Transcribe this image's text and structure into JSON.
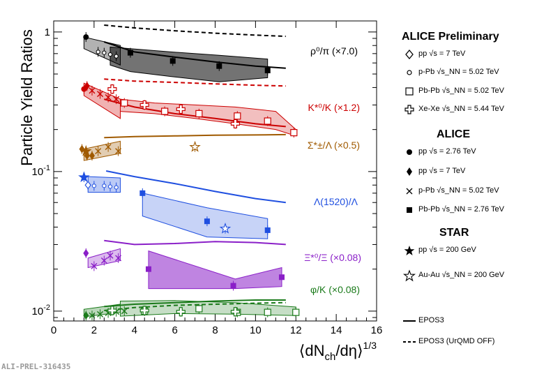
{
  "chart_data": {
    "type": "scatter",
    "ylabel": "Particle Yield Ratios",
    "xlabel": "⟨dN_ch/dη⟩^1/3",
    "y_scale": "log",
    "xlim": [
      0,
      16
    ],
    "ylim": [
      0.0085,
      1.2
    ],
    "x_ticks": [
      "0",
      "2",
      "4",
      "6",
      "8",
      "10",
      "12",
      "14",
      "16"
    ],
    "y_ticks": [
      {
        "value": 1,
        "label": "1"
      },
      {
        "value": 0.1,
        "label": "10^-1"
      },
      {
        "value": 0.01,
        "label": "10^-2"
      }
    ],
    "ratio_labels": [
      {
        "name": "rho-pi",
        "text": "ρ⁰/π (×7.0)",
        "color": "#000000"
      },
      {
        "name": "kstar-k",
        "text": "K*⁰/K (×1.2)",
        "color": "#cc0000"
      },
      {
        "name": "sigma-lambda",
        "text": "Σ*±/Λ (×0.5)",
        "color": "#a05a00"
      },
      {
        "name": "lambda1520",
        "text": "Λ(1520)/Λ",
        "color": "#1f4fe0"
      },
      {
        "name": "xi-xi",
        "text": "Ξ*⁰/Ξ (×0.08)",
        "color": "#8a1fc8"
      },
      {
        "name": "phi-k",
        "text": "φ/K (×0.08)",
        "color": "#1a7a1a"
      }
    ],
    "series": [
      {
        "name": "rho0/pi",
        "color": "#000000",
        "epos": {
          "x": [
            2.5,
            4,
            6,
            8,
            10,
            11.5
          ],
          "y": [
            0.85,
            0.72,
            0.66,
            0.61,
            0.57,
            0.55
          ]
        },
        "epos_off": {
          "x": [
            2.5,
            4,
            6,
            8,
            10,
            11.5
          ],
          "y": [
            1.12,
            1.07,
            1.02,
            0.98,
            0.95,
            0.93
          ]
        },
        "band_collision": {
          "x": [
            1.5,
            3.3
          ],
          "lo": [
            0.76,
            0.58
          ],
          "hi": [
            0.92,
            0.8
          ]
        },
        "band_pbpb": {
          "x": [
            2.8,
            3.8,
            5.8,
            8.2,
            10.6
          ],
          "lo": [
            0.58,
            0.52,
            0.48,
            0.44,
            0.47
          ],
          "hi": [
            0.78,
            0.76,
            0.72,
            0.68,
            0.64
          ]
        },
        "points": [
          {
            "set": "pp-2.76",
            "marker": "filled-circle",
            "x": [
              1.6
            ],
            "y": [
              0.92
            ]
          },
          {
            "set": "pPb-5.02-prelim",
            "marker": "open-circle",
            "x": [
              2.2,
              2.5,
              2.8,
              3.1
            ],
            "y": [
              0.72,
              0.71,
              0.69,
              0.67
            ]
          },
          {
            "set": "PbPb-2.76",
            "marker": "filled-square",
            "x": [
              3.8,
              5.9,
              8.2,
              10.6
            ],
            "y": [
              0.71,
              0.62,
              0.57,
              0.53
            ]
          }
        ]
      },
      {
        "name": "K*0/K",
        "color": "#cc0000",
        "epos": {
          "x": [
            2.5,
            4,
            6,
            8,
            10,
            11.5
          ],
          "y": [
            0.33,
            0.29,
            0.26,
            0.24,
            0.22,
            0.21
          ]
        },
        "epos_off": {
          "x": [
            2.5,
            4,
            6,
            8,
            10,
            11.5
          ],
          "y": [
            0.46,
            0.445,
            0.435,
            0.425,
            0.415,
            0.41
          ]
        },
        "band_collision": {
          "x": [
            1.5,
            3.3
          ],
          "lo": [
            0.35,
            0.24
          ],
          "hi": [
            0.43,
            0.33
          ]
        },
        "band_pbpb": {
          "x": [
            3.3,
            5,
            7,
            9,
            11,
            12
          ],
          "lo": [
            0.27,
            0.26,
            0.24,
            0.22,
            0.2,
            0.18
          ],
          "hi": [
            0.33,
            0.31,
            0.3,
            0.29,
            0.27,
            0.2
          ]
        },
        "points": [
          {
            "set": "pp-2.76",
            "marker": "filled-circle",
            "x": [
              1.5
            ],
            "y": [
              0.39
            ]
          },
          {
            "set": "pp-7",
            "marker": "filled-diamond",
            "x": [
              1.65
            ],
            "y": [
              0.41
            ]
          },
          {
            "set": "pPb-5.02",
            "marker": "cross",
            "x": [
              1.9,
              2.3,
              2.7,
              3.1
            ],
            "y": [
              0.38,
              0.36,
              0.34,
              0.33
            ]
          },
          {
            "set": "PbPb-5.02-prelim",
            "marker": "open-square",
            "x": [
              3.5,
              5.5,
              7.2,
              9.1,
              10.6,
              11.9
            ],
            "y": [
              0.31,
              0.27,
              0.26,
              0.25,
              0.23,
              0.19
            ]
          },
          {
            "set": "XeXe-5.44-prelim",
            "marker": "open-cross",
            "x": [
              2.9,
              4.5,
              6.3,
              9.0
            ],
            "y": [
              0.39,
              0.3,
              0.28,
              0.22
            ]
          }
        ]
      },
      {
        "name": "Sigma*/Lambda",
        "color": "#a05a00",
        "epos": {
          "x": [
            2.5,
            4,
            6,
            8,
            10,
            11.5
          ],
          "y": [
            0.175,
            0.178,
            0.18,
            0.182,
            0.183,
            0.184
          ]
        },
        "band_collision": {
          "x": [
            1.5,
            3.3
          ],
          "lo": [
            0.12,
            0.135
          ],
          "hi": [
            0.145,
            0.165
          ]
        },
        "points": [
          {
            "set": "pp-7",
            "marker": "filled-diamond",
            "x": [
              1.4,
              1.65,
              1.9
            ],
            "y": [
              0.145,
              0.13,
              0.13
            ]
          },
          {
            "set": "pPb-5.02",
            "marker": "cross",
            "x": [
              2.2,
              2.7,
              3.2
            ],
            "y": [
              0.14,
              0.15,
              0.14
            ]
          },
          {
            "set": "STAR-pp-200",
            "marker": "filled-star",
            "x": [
              1.6
            ],
            "y": [
              0.14
            ]
          },
          {
            "set": "STAR-AuAu-200",
            "marker": "open-star",
            "x": [
              7.0
            ],
            "y": [
              0.15
            ]
          }
        ]
      },
      {
        "name": "Lambda(1520)/Lambda",
        "color": "#1f4fe0",
        "epos": {
          "x": [
            2.6,
            4,
            6,
            8,
            10,
            11.5
          ],
          "y": [
            0.101,
            0.092,
            0.082,
            0.072,
            0.064,
            0.06
          ]
        },
        "band_collision": {
          "x": [
            1.7,
            3.3
          ],
          "lo": [
            0.071,
            0.071
          ],
          "hi": [
            0.092,
            0.09
          ]
        },
        "band_pbpb": {
          "x": [
            4.4,
            7.6,
            10.6
          ],
          "lo": [
            0.048,
            0.034,
            0.033
          ],
          "hi": [
            0.07,
            0.055,
            0.046
          ]
        },
        "points": [
          {
            "set": "STAR-pp-200",
            "marker": "filled-star",
            "x": [
              1.5
            ],
            "y": [
              0.091
            ]
          },
          {
            "set": "pp-7-prelim",
            "marker": "open-diamond",
            "x": [
              1.7
            ],
            "y": [
              0.08
            ]
          },
          {
            "set": "pPb-5.02-prelim",
            "marker": "open-circle",
            "x": [
              2.0,
              2.5,
              2.8,
              3.1
            ],
            "y": [
              0.079,
              0.079,
              0.078,
              0.077
            ]
          },
          {
            "set": "PbPb-2.76",
            "marker": "filled-square",
            "x": [
              4.4,
              7.6,
              10.6
            ],
            "y": [
              0.07,
              0.044,
              0.038
            ]
          },
          {
            "set": "STAR-AuAu-200",
            "marker": "open-star",
            "x": [
              8.5
            ],
            "y": [
              0.039
            ]
          }
        ]
      },
      {
        "name": "Xi*0/Xi",
        "color": "#8a1fc8",
        "epos": {
          "x": [
            2.5,
            4,
            6,
            8,
            10,
            11.5
          ],
          "y": [
            0.032,
            0.03,
            0.0305,
            0.0315,
            0.031,
            0.03
          ]
        },
        "band_collision": {
          "x": [
            1.7,
            3.3
          ],
          "lo": [
            0.0205,
            0.023
          ],
          "hi": [
            0.024,
            0.028
          ]
        },
        "band_pbpb": {
          "x": [
            4.7,
            9.0,
            11.3
          ],
          "lo": [
            0.0145,
            0.0145,
            0.015
          ],
          "hi": [
            0.027,
            0.017,
            0.0205
          ]
        },
        "points": [
          {
            "set": "pp-7",
            "marker": "filled-diamond",
            "x": [
              1.6
            ],
            "y": [
              0.026
            ]
          },
          {
            "set": "pPb-5.02",
            "marker": "cross",
            "x": [
              2.0,
              2.5,
              2.8,
              3.2
            ],
            "y": [
              0.021,
              0.023,
              0.025,
              0.024
            ]
          },
          {
            "set": "PbPb-2.76",
            "marker": "filled-square",
            "x": [
              4.7,
              8.9,
              11.3
            ],
            "y": [
              0.02,
              0.0152,
              0.0175
            ]
          }
        ]
      },
      {
        "name": "phi/K",
        "color": "#1a7a1a",
        "epos": {
          "x": [
            2.5,
            4,
            6,
            8,
            10,
            11.5
          ],
          "y": [
            0.0108,
            0.0112,
            0.0115,
            0.0118,
            0.012,
            0.012
          ]
        },
        "epos_off": {
          "x": [
            2.5,
            4,
            6,
            8,
            10,
            11.5
          ],
          "y": [
            0.0101,
            0.0106,
            0.011,
            0.0112,
            0.0114,
            0.0115
          ]
        },
        "band_collision": {
          "x": [
            1.5,
            3.3
          ],
          "lo": [
            0.0091,
            0.0098
          ],
          "hi": [
            0.0103,
            0.0112
          ]
        },
        "band_pbpb": {
          "x": [
            3.3,
            6,
            9,
            12
          ],
          "lo": [
            0.0092,
            0.0096,
            0.0095,
            0.0093
          ],
          "hi": [
            0.0118,
            0.0119,
            0.0115,
            0.0107
          ]
        },
        "points": [
          {
            "set": "pp-7",
            "marker": "filled-diamond",
            "x": [
              1.6
            ],
            "y": [
              0.0093
            ]
          },
          {
            "set": "pPb-5.02",
            "marker": "cross",
            "x": [
              1.9,
              2.3,
              2.7,
              3.1,
              3.5
            ],
            "y": [
              0.0093,
              0.0095,
              0.0097,
              0.0099,
              0.01
            ]
          },
          {
            "set": "PbPb-5.02-prelim",
            "marker": "open-square",
            "x": [
              4.5,
              7.2,
              9.1,
              10.6,
              12.0
            ],
            "y": [
              0.01,
              0.0104,
              0.0098,
              0.0098,
              0.0098
            ]
          },
          {
            "set": "XeXe-5.44-prelim",
            "marker": "open-cross",
            "x": [
              2.9,
              4.5,
              6.3,
              9.0
            ],
            "y": [
              0.0101,
              0.0101,
              0.0099,
              0.0099
            ]
          }
        ]
      }
    ]
  },
  "legend": {
    "alice_prelim_header": "ALICE Preliminary",
    "alice_header": "ALICE",
    "star_header": "STAR",
    "items": {
      "pp7_prelim": {
        "label": "pp √s = 7 TeV",
        "color": "#000000"
      },
      "ppb_prelim": {
        "label": "p-Pb √s_NN = 5.02 TeV",
        "color": "#000000"
      },
      "pbpb_prelim": {
        "label": "Pb-Pb √s_NN = 5.02 TeV",
        "color": "#000000"
      },
      "xexe_prelim": {
        "label": "Xe-Xe √s_NN = 5.44 TeV",
        "color": "#000000"
      },
      "pp276": {
        "label": "pp √s = 2.76 TeV",
        "color": "#000000"
      },
      "pp7": {
        "label": "pp √s = 7 TeV",
        "color": "#000000"
      },
      "ppb": {
        "label": "p-Pb √s_NN = 5.02 TeV",
        "color": "#000000"
      },
      "pbpb276": {
        "label": "Pb-Pb √s_NN = 2.76 TeV",
        "color": "#000000"
      },
      "star_pp": {
        "label": "pp √s = 200 GeV",
        "color": "#000000"
      },
      "star_auau": {
        "label": "Au-Au √s_NN = 200 GeV",
        "color": "#000000"
      },
      "epos3": {
        "label": "EPOS3",
        "color": "#000000"
      },
      "epos3_off": {
        "label": "EPOS3 (UrQMD OFF)",
        "color": "#000000"
      }
    }
  },
  "watermark": "ALI-PREL-316435"
}
